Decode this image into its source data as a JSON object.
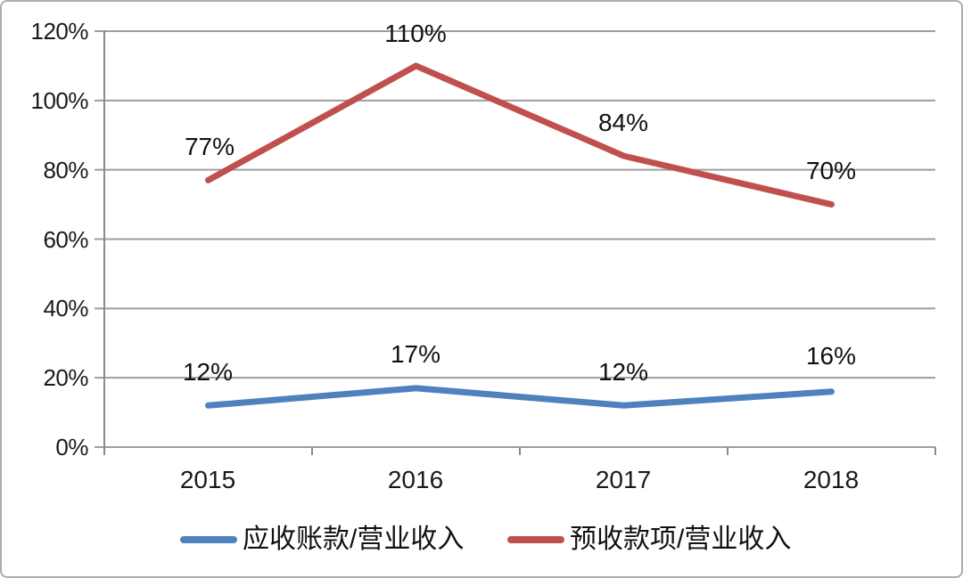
{
  "chart_data": {
    "type": "line",
    "title": "",
    "xlabel": "",
    "ylabel": "",
    "categories": [
      "2015",
      "2016",
      "2017",
      "2018"
    ],
    "series": [
      {
        "name": "应收账款/营业收入",
        "color": "#4F81BD",
        "values": [
          12,
          17,
          12,
          16
        ],
        "labels": [
          "12%",
          "17%",
          "12%",
          "16%"
        ]
      },
      {
        "name": "预收款项/营业收入",
        "color": "#C0504D",
        "values": [
          77,
          110,
          84,
          70
        ],
        "labels": [
          "77%",
          "110%",
          "84%",
          "70%"
        ]
      }
    ],
    "ylim": [
      0,
      120
    ],
    "ytick_step": 20,
    "yticks": [
      "120%",
      "100%",
      "80%",
      "60%",
      "40%",
      "20%",
      "0%"
    ],
    "grid": "horizontal-only",
    "legend_position": "bottom"
  },
  "colors": {
    "gridline": "#9E9E9E",
    "axis": "#8A8A8A",
    "text": "#1A1A1A",
    "background": "#FFFFFF",
    "frame_border": "#AEAEAE"
  }
}
